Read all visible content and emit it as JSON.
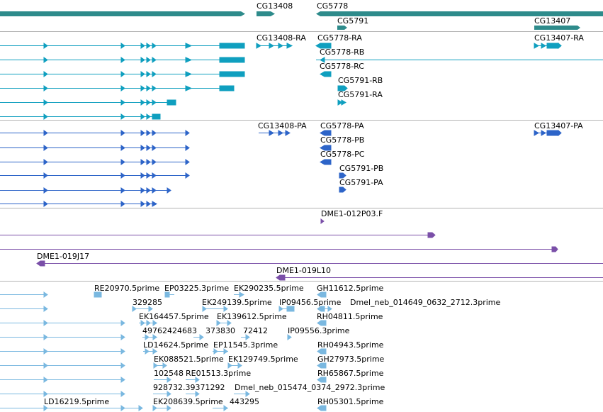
{
  "colors": {
    "gene": "#2e8b8b",
    "mrna": "#0f9fbf",
    "cds": "#2d64c8",
    "est": "#7a4fa8",
    "cdna": "#7ab8e0",
    "divider": "#b4b4b4"
  },
  "tracks": {
    "genes": [
      "CG13408",
      "CG5778",
      "CG5791",
      "CG13407"
    ],
    "mrna": [
      "CG13408-RA",
      "CG5778-RA",
      "CG5778-RB",
      "CG5778-RC",
      "CG5791-RB",
      "CG5791-RA",
      "CG13407-RA"
    ],
    "cds": [
      "CG13408-PA",
      "CG5778-PA",
      "CG5778-PB",
      "CG5778-PC",
      "CG5791-PB",
      "CG5791-PA",
      "CG13407-PA"
    ],
    "est": [
      "DME1-012P03.F",
      "DME1-019J17",
      "DME1-019L10"
    ],
    "cdna": [
      "RE20970.5prime",
      "EP03225.3prime",
      "EK290235.5prime",
      "GH11612.5prime",
      "329285",
      "EK249139.5prime",
      "IP09456.5prime",
      "Dmel_neb_014649_0632_2712.3prime",
      "EK164457.5prime",
      "EK139612.5prime",
      "RH04811.5prime",
      "49762424683",
      "373830",
      "72412",
      "IP09556.3prime",
      "LD14624.5prime",
      "EP11545.3prime",
      "RH04943.5prime",
      "EK088521.5prime",
      "EK129749.5prime",
      "GH27973.5prime",
      "102548",
      "RE01513.3prime",
      "RH65867.5prime",
      "928732.39371292",
      "Dmel_neb_015474_0374_2972.3prime",
      "LD16219.5prime",
      "EK208639.5prime",
      "443295",
      "RH05301.5prime"
    ]
  }
}
